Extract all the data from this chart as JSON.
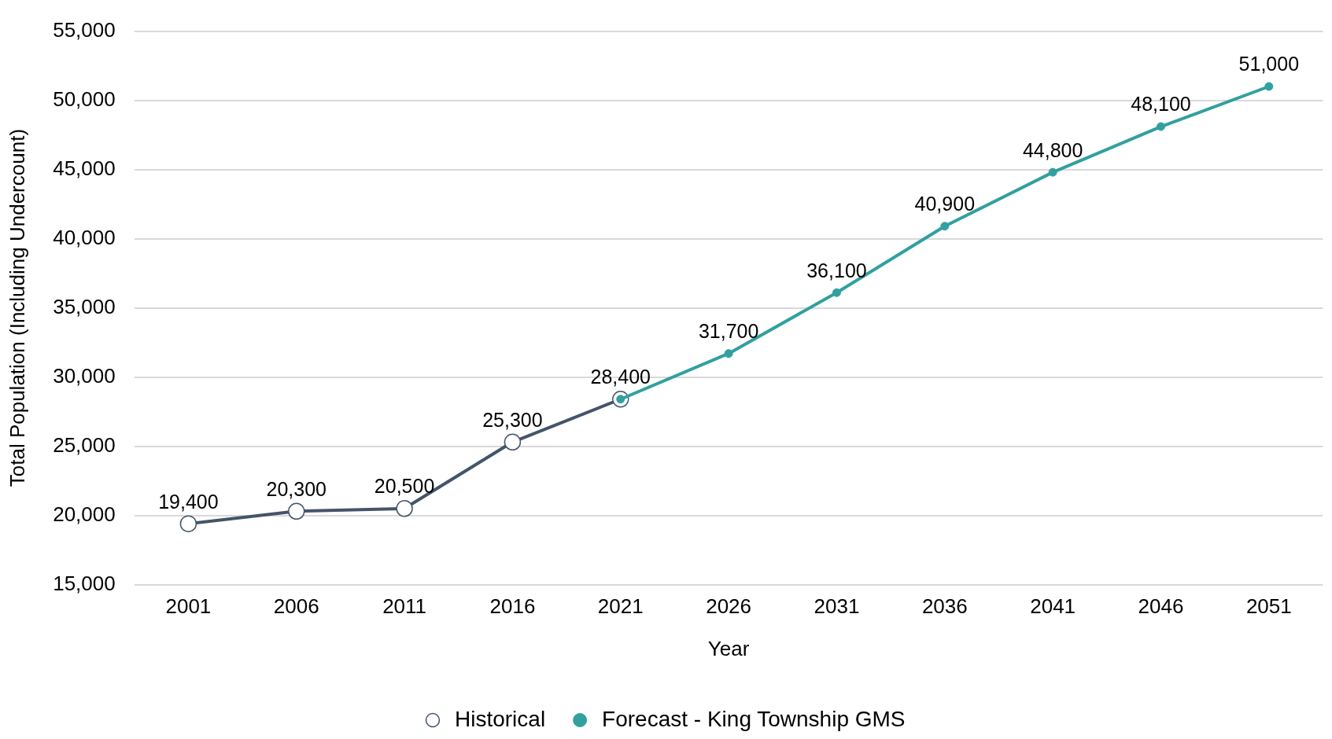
{
  "chart_data": {
    "type": "line",
    "xlabel": "Year",
    "ylabel": "Total Population (Including Undercount)",
    "categories": [
      "2001",
      "2006",
      "2011",
      "2016",
      "2021",
      "2026",
      "2031",
      "2036",
      "2041",
      "2046",
      "2051"
    ],
    "series": [
      {
        "name": "Historical",
        "color": "#44546a",
        "values": [
          19400,
          20300,
          20500,
          25300,
          28400,
          null,
          null,
          null,
          null,
          null,
          null
        ],
        "value_labels": [
          "19,400",
          "20,300",
          "20,500",
          "25,300",
          null,
          null,
          null,
          null,
          null,
          null,
          null
        ]
      },
      {
        "name": "Forecast - King Township GMS",
        "color": "#31a09f",
        "values": [
          null,
          null,
          null,
          null,
          28400,
          31700,
          36100,
          40900,
          44800,
          48100,
          51000
        ],
        "value_labels": [
          null,
          null,
          null,
          null,
          "28,400",
          "31,700",
          "36,100",
          "40,900",
          "44,800",
          "48,100",
          "51,000"
        ]
      }
    ],
    "ylim": [
      15000,
      55000
    ],
    "yticks": [
      {
        "value": 15000,
        "label": "15,000"
      },
      {
        "value": 20000,
        "label": "20,000"
      },
      {
        "value": 25000,
        "label": "25,000"
      },
      {
        "value": 30000,
        "label": "30,000"
      },
      {
        "value": 35000,
        "label": "35,000"
      },
      {
        "value": 40000,
        "label": "40,000"
      },
      {
        "value": 45000,
        "label": "45,000"
      },
      {
        "value": 50000,
        "label": "50,000"
      },
      {
        "value": 55000,
        "label": "55,000"
      }
    ],
    "grid": "y",
    "legend": "bottom",
    "marker": "circle",
    "line_style": "solid"
  }
}
